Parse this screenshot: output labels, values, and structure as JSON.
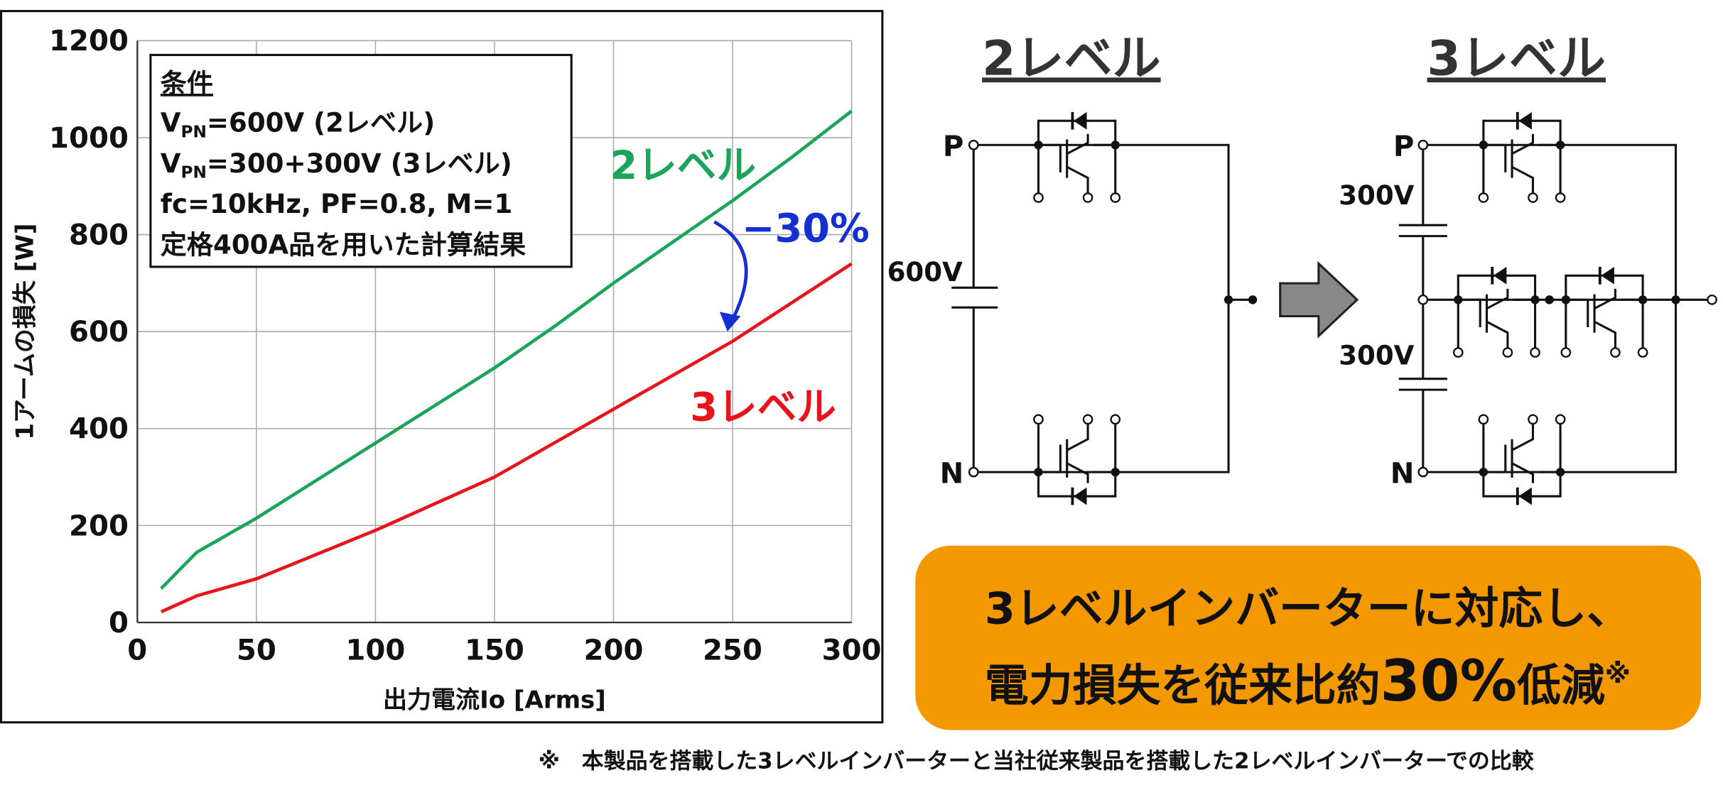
{
  "chart_data": {
    "type": "line",
    "x": [
      10,
      25,
      50,
      100,
      150,
      175,
      200,
      250,
      275,
      300
    ],
    "series": [
      {
        "name": "2レベル",
        "color": "#1aa55a",
        "values": [
          70,
          145,
          215,
          370,
          525,
          610,
          700,
          870,
          960,
          1055
        ]
      },
      {
        "name": "3レベル",
        "color": "#e8141b",
        "values": [
          22,
          55,
          90,
          190,
          300,
          370,
          440,
          580,
          660,
          740
        ]
      }
    ],
    "xlim": [
      0,
      300
    ],
    "xticks": [
      0,
      50,
      100,
      150,
      200,
      250,
      300
    ],
    "ylim": [
      0,
      1200
    ],
    "yticks": [
      0,
      200,
      400,
      600,
      800,
      1000,
      1200
    ],
    "grid": true,
    "xlabel": "出力電流Io [Arms]",
    "ylabel": "1アームの損失 [W]",
    "annotation": "−30%",
    "conditions": {
      "title": "条件",
      "vlines": [
        {
          "symbol": "V",
          "subscript": "PN",
          "text": "=600V (2レベル)"
        },
        {
          "symbol": "V",
          "subscript": "PN",
          "text": "=300+300V (3レベル)"
        }
      ],
      "lines": [
        "fc=10kHz, PF=0.8, M=1",
        "定格400A品を用いた計算結果"
      ]
    }
  },
  "diagram": {
    "left": {
      "title": "2レベル",
      "p": "P",
      "n": "N",
      "voltage": "600V"
    },
    "right": {
      "title": "3レベル",
      "p": "P",
      "n": "N",
      "voltages": [
        "300V",
        "300V"
      ]
    }
  },
  "callout": {
    "line1": "3レベルインバーターに対応し、",
    "before": "電力損失を従来比約",
    "figure": "30%",
    "after": "低減",
    "mark": "※"
  },
  "footnote": "※　本製品を搭載した3レベルインバーターと当社従来製品を搭載した2レベルインバーターでの比較"
}
